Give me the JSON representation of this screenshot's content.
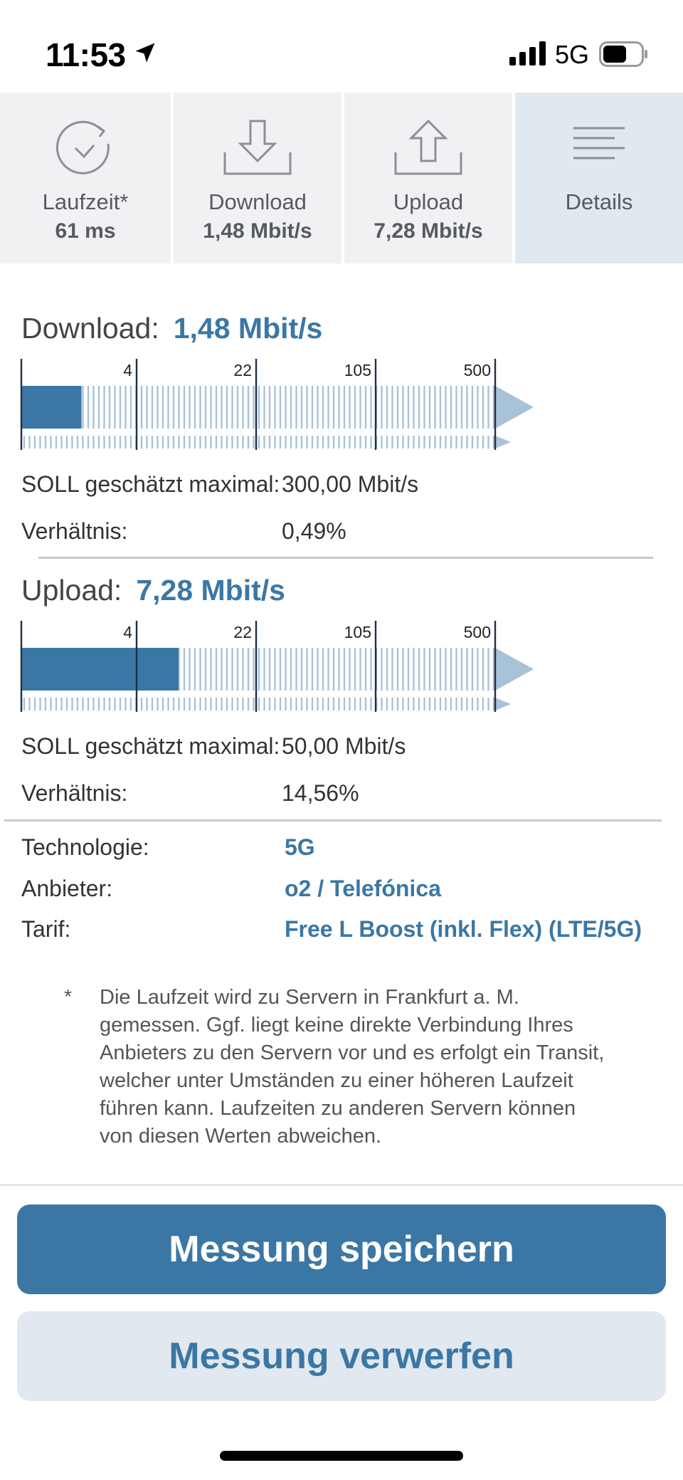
{
  "status_bar": {
    "time": "11:53",
    "network": "5G",
    "icons": [
      "location-arrow-icon",
      "cellular-signal-icon",
      "battery-icon"
    ]
  },
  "tabs": [
    {
      "icon": "gauge-check-icon",
      "label": "Laufzeit*",
      "value": "61 ms"
    },
    {
      "icon": "download-tray-icon",
      "label": "Download",
      "value": "1,48 Mbit/s"
    },
    {
      "icon": "upload-tray-icon",
      "label": "Upload",
      "value": "7,28 Mbit/s"
    },
    {
      "icon": "details-lines-icon",
      "label": "Details",
      "value": ""
    }
  ],
  "download": {
    "title": "Download:",
    "value": "1,48 Mbit/s",
    "speed_mbit": 1.48,
    "scale_ticks": [
      "4",
      "22",
      "105",
      "500"
    ],
    "soll_label": "SOLL geschätzt maximal:",
    "soll_value": "300,00 Mbit/s",
    "ratio_label": "Verhältnis:",
    "ratio_value": "0,49%"
  },
  "upload": {
    "title": "Upload:",
    "value": "7,28 Mbit/s",
    "speed_mbit": 7.28,
    "scale_ticks": [
      "4",
      "22",
      "105",
      "500"
    ],
    "soll_label": "SOLL geschätzt maximal:",
    "soll_value": "50,00 Mbit/s",
    "ratio_label": "Verhältnis:",
    "ratio_value": "14,56%"
  },
  "info": {
    "technology_label": "Technologie:",
    "technology_value": "5G",
    "provider_label": "Anbieter:",
    "provider_value": "o2 / Telefónica",
    "tariff_label": "Tarif:",
    "tariff_value": "Free L Boost (inkl. Flex) (LTE/5G)"
  },
  "footnote": {
    "marker": "*",
    "lines": [
      "Die Laufzeit wird zu Servern in Frankfurt a. M.",
      "gemessen. Ggf. liegt keine direkte Verbindung Ihres",
      "Anbieters zu den Servern vor und es erfolgt ein Transit,",
      "welcher unter Umständen zu einer höheren Laufzeit",
      "führen kann. Laufzeiten zu anderen Servern können",
      "von diesen Werten abweichen."
    ]
  },
  "buttons": {
    "save": "Messung speichern",
    "discard": "Messung verwerfen"
  },
  "colors": {
    "accent": "#3b77a5",
    "bar_light": "#a8c2d8",
    "tab_bg": "#f1f1f4",
    "tab_active_bg": "#e0e8f0",
    "secondary_btn_bg": "#e1e8ef"
  }
}
